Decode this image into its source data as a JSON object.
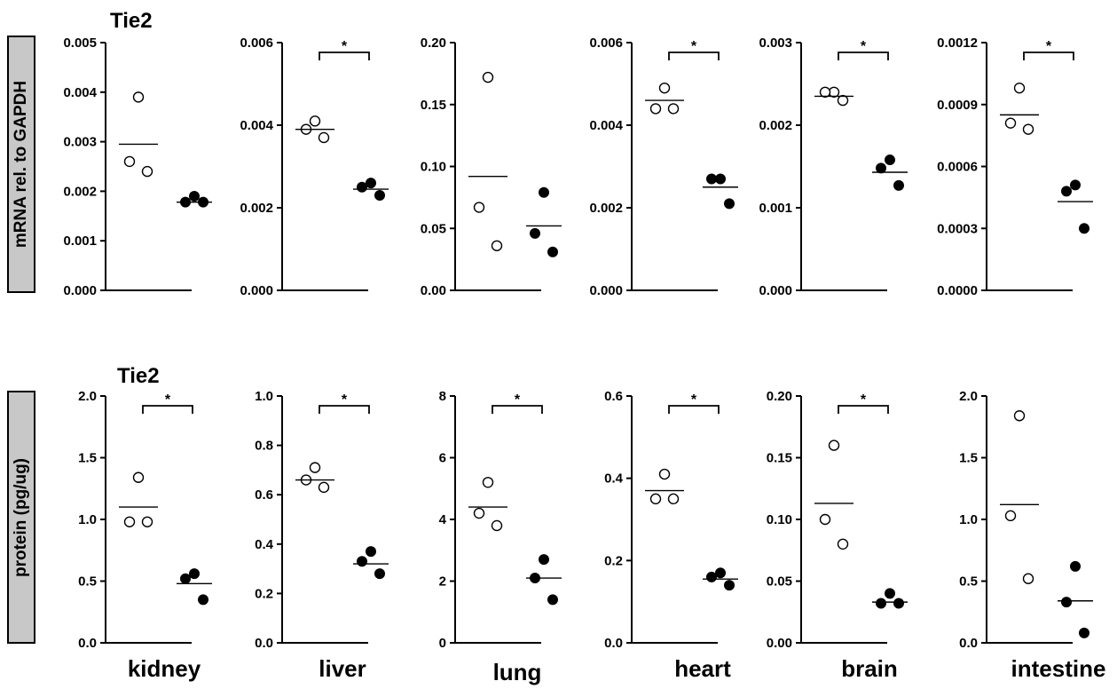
{
  "rows": [
    {
      "title": "Tie2",
      "ylabel": "mRNA rel. to GAPDH"
    },
    {
      "title": "Tie2",
      "ylabel": "protein (pg/ug)"
    }
  ],
  "organs": [
    "kidney",
    "liver",
    "lung",
    "heart",
    "brain",
    "intestine"
  ],
  "colors": {
    "axis": "#000000",
    "open_marker_fill": "#ffffff",
    "filled_marker": "#000000",
    "label_box": "#c8c8c8"
  },
  "chart_data": [
    {
      "type": "scatter",
      "row": 0,
      "organ": "kidney",
      "ylim": [
        0,
        0.005
      ],
      "yticks": [
        "0.000",
        "0.001",
        "0.002",
        "0.003",
        "0.004",
        "0.005"
      ],
      "group1": {
        "values": [
          0.0039,
          0.0026,
          0.0024
        ],
        "mean": 0.00295
      },
      "group2": {
        "values": [
          0.0019,
          0.00178,
          0.00178
        ],
        "mean": 0.00178
      },
      "significance": ""
    },
    {
      "type": "scatter",
      "row": 0,
      "organ": "liver",
      "ylim": [
        0,
        0.006
      ],
      "yticks": [
        "0.000",
        "0.002",
        "0.004",
        "0.006"
      ],
      "group1": {
        "values": [
          0.0041,
          0.0039,
          0.0037
        ],
        "mean": 0.0039
      },
      "group2": {
        "values": [
          0.0026,
          0.0025,
          0.0023
        ],
        "mean": 0.00245
      },
      "significance": "*"
    },
    {
      "type": "scatter",
      "row": 0,
      "organ": "lung",
      "ylim": [
        0,
        0.2
      ],
      "yticks": [
        "0.00",
        "0.05",
        "0.10",
        "0.15",
        "0.20"
      ],
      "group1": {
        "values": [
          0.172,
          0.067,
          0.036
        ],
        "mean": 0.092
      },
      "group2": {
        "values": [
          0.079,
          0.046,
          0.031
        ],
        "mean": 0.052
      },
      "significance": ""
    },
    {
      "type": "scatter",
      "row": 0,
      "organ": "heart",
      "ylim": [
        0,
        0.006
      ],
      "yticks": [
        "0.000",
        "0.002",
        "0.004",
        "0.006"
      ],
      "group1": {
        "values": [
          0.0049,
          0.0044,
          0.0044
        ],
        "mean": 0.0046
      },
      "group2": {
        "values": [
          0.0027,
          0.0027,
          0.0021
        ],
        "mean": 0.0025
      },
      "significance": "*"
    },
    {
      "type": "scatter",
      "row": 0,
      "organ": "brain",
      "ylim": [
        0,
        0.003
      ],
      "yticks": [
        "0.000",
        "0.001",
        "0.002",
        "0.003"
      ],
      "group1": {
        "values": [
          0.0024,
          0.0024,
          0.0023
        ],
        "mean": 0.00235
      },
      "group2": {
        "values": [
          0.00158,
          0.00148,
          0.00127
        ],
        "mean": 0.00143
      },
      "significance": "*"
    },
    {
      "type": "scatter",
      "row": 0,
      "organ": "intestine",
      "ylim": [
        0,
        0.0012
      ],
      "yticks": [
        "0.0000",
        "0.0003",
        "0.0006",
        "0.0009",
        "0.0012"
      ],
      "group1": {
        "values": [
          0.00098,
          0.00081,
          0.00078
        ],
        "mean": 0.00085
      },
      "group2": {
        "values": [
          0.00051,
          0.00048,
          0.0003
        ],
        "mean": 0.00043
      },
      "significance": "*"
    },
    {
      "type": "scatter",
      "row": 1,
      "organ": "kidney",
      "ylim": [
        0,
        2.0
      ],
      "yticks": [
        "0.0",
        "0.5",
        "1.0",
        "1.5",
        "2.0"
      ],
      "group1": {
        "values": [
          1.34,
          0.98,
          0.98
        ],
        "mean": 1.1
      },
      "group2": {
        "values": [
          0.56,
          0.52,
          0.35
        ],
        "mean": 0.48
      },
      "significance": "*"
    },
    {
      "type": "scatter",
      "row": 1,
      "organ": "liver",
      "ylim": [
        0,
        1.0
      ],
      "yticks": [
        "0.0",
        "0.2",
        "0.4",
        "0.6",
        "0.8",
        "1.0"
      ],
      "group1": {
        "values": [
          0.71,
          0.66,
          0.63
        ],
        "mean": 0.66
      },
      "group2": {
        "values": [
          0.37,
          0.33,
          0.28
        ],
        "mean": 0.32
      },
      "significance": "*"
    },
    {
      "type": "scatter",
      "row": 1,
      "organ": "lung",
      "ylim": [
        0,
        8
      ],
      "yticks": [
        "0",
        "2",
        "4",
        "6",
        "8"
      ],
      "group1": {
        "values": [
          5.2,
          4.2,
          3.8
        ],
        "mean": 4.4
      },
      "group2": {
        "values": [
          2.7,
          2.1,
          1.4
        ],
        "mean": 2.1
      },
      "significance": "*"
    },
    {
      "type": "scatter",
      "row": 1,
      "organ": "heart",
      "ylim": [
        0,
        0.6
      ],
      "yticks": [
        "0.0",
        "0.2",
        "0.4",
        "0.6"
      ],
      "group1": {
        "values": [
          0.41,
          0.35,
          0.35
        ],
        "mean": 0.37
      },
      "group2": {
        "values": [
          0.17,
          0.16,
          0.14
        ],
        "mean": 0.155
      },
      "significance": "*"
    },
    {
      "type": "scatter",
      "row": 1,
      "organ": "brain",
      "ylim": [
        0,
        0.2
      ],
      "yticks": [
        "0.00",
        "0.05",
        "0.10",
        "0.15",
        "0.20"
      ],
      "group1": {
        "values": [
          0.16,
          0.1,
          0.08
        ],
        "mean": 0.113
      },
      "group2": {
        "values": [
          0.04,
          0.032,
          0.032
        ],
        "mean": 0.033
      },
      "significance": "*"
    },
    {
      "type": "scatter",
      "row": 1,
      "organ": "intestine",
      "ylim": [
        0,
        2.0
      ],
      "yticks": [
        "0.0",
        "0.5",
        "1.0",
        "1.5",
        "2.0"
      ],
      "group1": {
        "values": [
          1.84,
          1.03,
          0.52
        ],
        "mean": 1.12
      },
      "group2": {
        "values": [
          0.62,
          0.33,
          0.08
        ],
        "mean": 0.34
      },
      "significance": ""
    }
  ]
}
